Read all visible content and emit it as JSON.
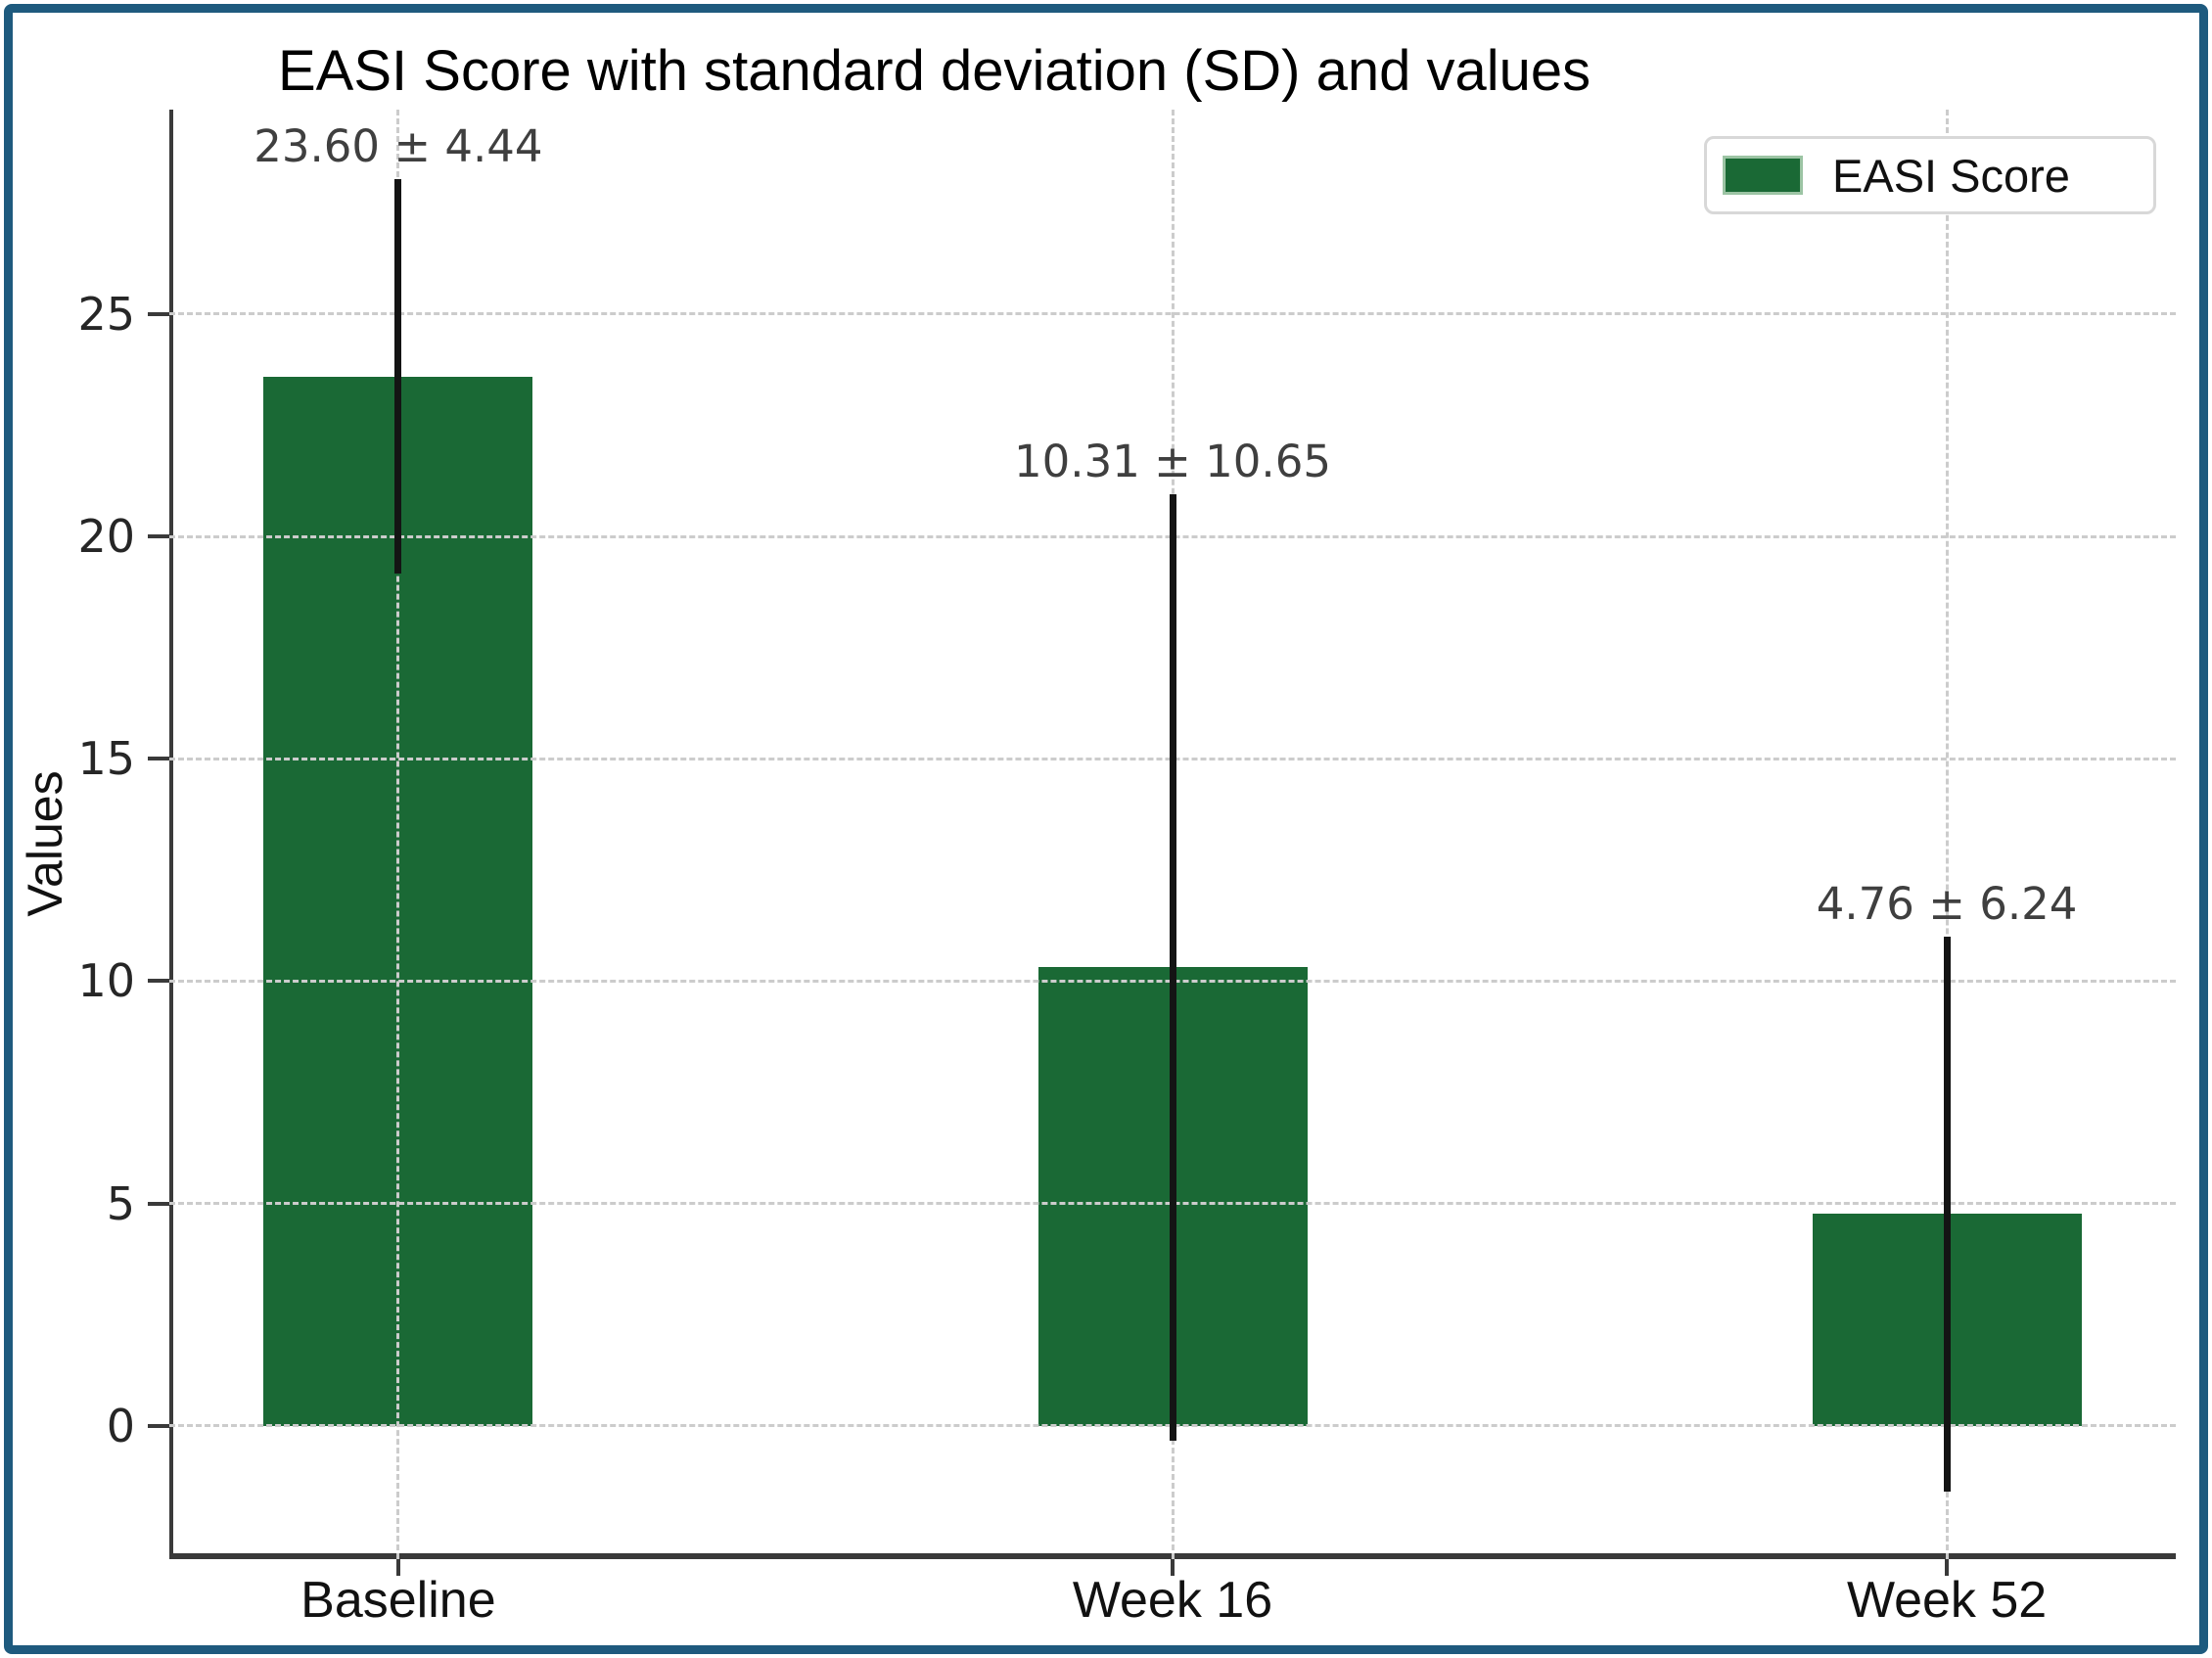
{
  "chart_data": {
    "type": "bar",
    "title": "EASI Score with standard deviation (SD) and values",
    "xlabel": "",
    "ylabel": "Values",
    "categories": [
      "Baseline",
      "Week 16",
      "Week 52"
    ],
    "series": [
      {
        "name": "EASI Score",
        "values": [
          23.6,
          10.31,
          4.76
        ],
        "sd": [
          4.44,
          10.65,
          6.24
        ]
      }
    ],
    "annotations": [
      "23.60 ± 4.44",
      "10.31 ± 10.65",
      "4.76 ± 6.24"
    ],
    "legend": [
      "EASI Score"
    ],
    "legend_position": "upper right",
    "yticks": [
      0,
      5,
      10,
      15,
      20,
      25
    ],
    "ylim": [
      -3.0,
      29.6
    ],
    "grid": "dashed-both-axes",
    "colors": {
      "bar": "#1a6935",
      "error_bar": "#141414",
      "grid": "#cccccc",
      "annotation": "#3f3f3f",
      "spine": "#3a3a3a",
      "frame_border": "#1e5a7e",
      "background": "#ffffff"
    }
  }
}
